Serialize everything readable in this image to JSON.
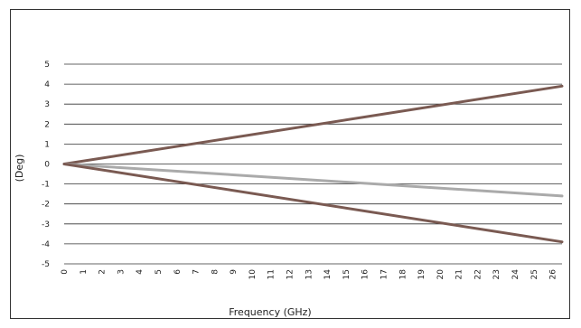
{
  "chart_data": {
    "type": "line",
    "xlabel": "Frequency (GHz)",
    "ylabel": "(Deg)",
    "xlim": [
      0,
      26.5
    ],
    "ylim": [
      -5,
      5
    ],
    "x_ticks": [
      "0",
      "1",
      "2",
      "3",
      "4",
      "5",
      "6",
      "7",
      "8",
      "9",
      "10",
      "11",
      "12",
      "13",
      "14",
      "15",
      "16",
      "17",
      "18",
      "19",
      "20",
      "21",
      "22",
      "23",
      "24",
      "25",
      "26"
    ],
    "y_ticks": [
      "5",
      "4",
      "3",
      "2",
      "1",
      "0",
      "-1",
      "-2",
      "-3",
      "-4",
      "-5"
    ],
    "grid": {
      "horizontal": true,
      "vertical": false
    },
    "legend": "none",
    "series": [
      {
        "color": "#7a5a52",
        "x": [
          0,
          26.5
        ],
        "values": [
          0,
          3.9
        ]
      },
      {
        "color": "#aaaaaa",
        "x": [
          0,
          26.5
        ],
        "values": [
          0,
          -1.6
        ]
      },
      {
        "color": "#7a5a52",
        "x": [
          0,
          26.5
        ],
        "values": [
          0,
          -3.9
        ]
      }
    ]
  }
}
